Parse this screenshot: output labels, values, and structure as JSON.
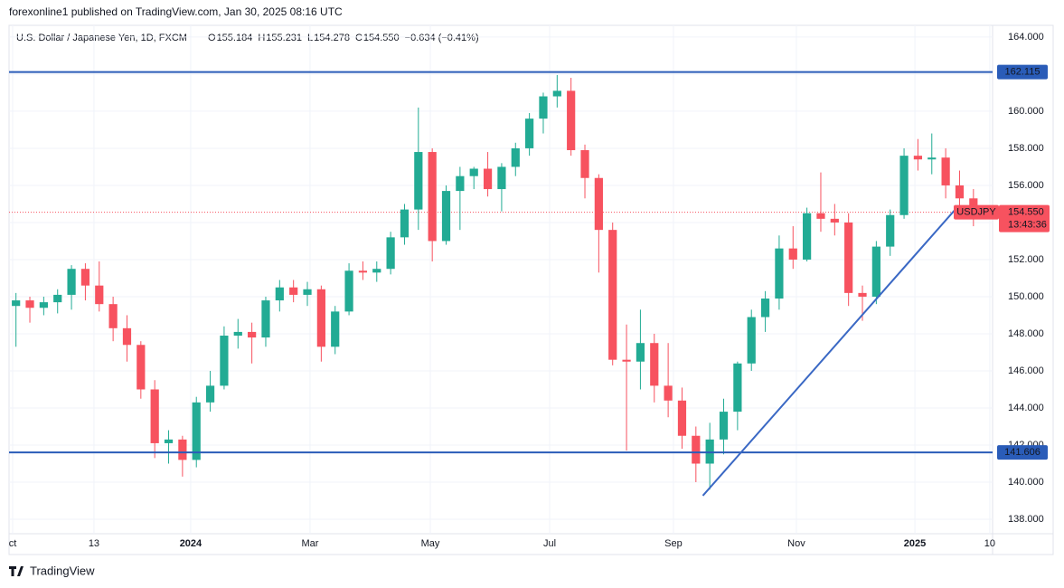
{
  "chart_data": {
    "type": "candlestick",
    "published": "forexonline1 published on TradingView.com, Jan 30, 2025 08:16 UTC",
    "title": "U.S. Dollar / Japanese Yen, 1D, FXCM",
    "ohlc_header": [
      {
        "label": "O",
        "value": "155.184"
      },
      {
        "label": "H",
        "value": "155.231"
      },
      {
        "label": "L",
        "value": "154.278"
      },
      {
        "label": "C",
        "value": "154.550"
      }
    ],
    "change": "−0.634 (−0.41%)",
    "symbol": "USDJPY",
    "countdown": "13:43:36",
    "brand": "TradingView",
    "up_color": "#22ab94",
    "down_color": "#f7525f",
    "x": [
      0,
      1,
      2,
      3,
      4,
      5,
      6,
      7,
      8,
      9,
      10,
      11,
      12,
      13,
      14,
      15,
      16,
      17,
      18,
      19,
      20,
      21,
      22,
      23,
      24,
      25,
      26,
      27,
      28,
      29,
      30,
      31,
      32,
      33,
      34,
      35,
      36,
      37,
      38,
      39,
      40,
      41,
      42,
      43,
      44,
      45,
      46,
      47,
      48,
      49,
      50,
      51,
      52,
      53,
      54,
      55,
      56,
      57,
      58,
      59,
      60,
      61,
      62,
      63,
      64,
      65,
      66,
      67,
      68,
      69
    ],
    "open": [
      149.5,
      149.8,
      149.4,
      149.7,
      150.1,
      151.5,
      150.6,
      149.6,
      148.3,
      147.4,
      145.0,
      142.1,
      142.3,
      141.2,
      144.3,
      145.2,
      147.9,
      148.1,
      147.8,
      149.8,
      150.5,
      150.1,
      150.4,
      147.3,
      149.2,
      151.4,
      151.3,
      151.5,
      153.2,
      154.7,
      157.8,
      153.0,
      155.7,
      156.5,
      156.9,
      155.8,
      157.0,
      158.0,
      159.6,
      160.8,
      161.1,
      157.9,
      156.4,
      153.6,
      146.6,
      146.5,
      147.5,
      145.2,
      144.4,
      142.5,
      141.0,
      142.3,
      143.8,
      146.4,
      148.9,
      149.9,
      152.6,
      152.0,
      154.5,
      154.2,
      154.0,
      150.2,
      150.0,
      152.7,
      154.4,
      157.6,
      157.4,
      157.5,
      156.0,
      155.3
    ],
    "high": [
      150.2,
      150.0,
      150.0,
      150.4,
      151.7,
      151.8,
      151.9,
      150.0,
      149.0,
      147.6,
      145.5,
      142.8,
      142.5,
      144.6,
      146.0,
      148.4,
      148.8,
      148.6,
      150.0,
      150.9,
      150.9,
      150.8,
      150.6,
      149.5,
      151.8,
      151.9,
      151.9,
      153.5,
      155.0,
      160.2,
      158.0,
      156.0,
      157.0,
      157.0,
      157.8,
      157.2,
      158.3,
      159.9,
      161.0,
      161.95,
      161.8,
      158.2,
      156.6,
      154.0,
      148.5,
      149.3,
      148.0,
      147.5,
      145.1,
      143.0,
      143.2,
      144.5,
      146.5,
      149.3,
      150.3,
      153.3,
      153.8,
      154.8,
      156.7,
      155.0,
      154.5,
      150.6,
      153.0,
      154.7,
      158.0,
      158.5,
      158.8,
      158.0,
      156.8,
      155.8
    ],
    "low": [
      147.3,
      148.6,
      149.0,
      149.1,
      149.3,
      149.8,
      149.2,
      147.6,
      146.5,
      144.5,
      141.3,
      141.0,
      140.3,
      140.8,
      143.8,
      145.0,
      147.2,
      146.4,
      147.3,
      149.2,
      149.7,
      149.5,
      146.5,
      146.9,
      149.0,
      150.9,
      150.8,
      151.2,
      152.8,
      153.6,
      151.9,
      152.8,
      153.6,
      155.8,
      155.4,
      154.6,
      156.5,
      157.6,
      158.8,
      160.2,
      157.6,
      155.3,
      151.3,
      146.3,
      141.7,
      145.0,
      144.3,
      143.5,
      141.8,
      140.0,
      139.6,
      141.5,
      142.8,
      146.0,
      148.1,
      149.3,
      151.5,
      151.9,
      153.5,
      153.3,
      149.5,
      148.7,
      149.6,
      152.2,
      154.2,
      156.8,
      156.6,
      155.3,
      154.8,
      153.8
    ],
    "close": [
      149.8,
      149.4,
      149.7,
      150.1,
      151.5,
      150.6,
      149.6,
      148.3,
      147.4,
      145.0,
      142.1,
      142.3,
      141.2,
      144.3,
      145.2,
      147.9,
      148.1,
      147.8,
      149.8,
      150.5,
      150.1,
      150.4,
      147.3,
      149.2,
      151.4,
      151.3,
      151.5,
      153.2,
      154.7,
      157.8,
      153.0,
      155.7,
      156.5,
      156.9,
      155.8,
      157.0,
      158.0,
      159.6,
      160.8,
      161.1,
      157.9,
      156.4,
      153.6,
      146.6,
      146.5,
      147.5,
      145.2,
      144.4,
      142.5,
      141.0,
      142.3,
      143.8,
      146.4,
      148.9,
      149.9,
      152.6,
      152.0,
      154.5,
      154.2,
      154.0,
      150.2,
      150.0,
      152.7,
      154.4,
      157.6,
      157.4,
      157.5,
      156.0,
      155.3,
      154.55
    ],
    "last_price": {
      "value": 154.55,
      "label": "154.550"
    },
    "hlines": [
      {
        "value": 162.115,
        "color": "#2a5cb8"
      },
      {
        "value": 141.606,
        "color": "#2a5cb8"
      }
    ],
    "trendline": {
      "x": [
        49.5,
        67.9
      ],
      "y": [
        139.27,
        154.88
      ],
      "color": "#3a68c4"
    },
    "xlim": [
      -0.5,
      70.38
    ],
    "ylim": [
      137.22,
      164.63
    ],
    "xticks": [
      {
        "value": -0.24,
        "label": "ct"
      },
      {
        "value": 5.62,
        "label": "13"
      },
      {
        "value": 12.59,
        "label": "2024"
      },
      {
        "value": 21.19,
        "label": "Mar"
      },
      {
        "value": 29.86,
        "label": "May"
      },
      {
        "value": 38.46,
        "label": "Jul"
      },
      {
        "value": 47.38,
        "label": "Sep"
      },
      {
        "value": 56.24,
        "label": "Nov"
      },
      {
        "value": 64.78,
        "label": "2025"
      },
      {
        "value": 70.18,
        "label": "10"
      }
    ],
    "yticks": [
      {
        "value": 138,
        "label": "138.000"
      },
      {
        "value": 140,
        "label": "140.000"
      },
      {
        "value": 142,
        "label": "142.000"
      },
      {
        "value": 144,
        "label": "144.000"
      },
      {
        "value": 146,
        "label": "146.000"
      },
      {
        "value": 148,
        "label": "148.000"
      },
      {
        "value": 150,
        "label": "150.000"
      },
      {
        "value": 152,
        "label": "152.000"
      },
      {
        "value": 154,
        "label": "154.000"
      },
      {
        "value": 156,
        "label": "156.000"
      },
      {
        "value": 158,
        "label": "158.000"
      },
      {
        "value": 160,
        "label": "160.000"
      },
      {
        "value": 162,
        "label": "162.000"
      },
      {
        "value": 164,
        "label": "164.000"
      }
    ],
    "grid": true
  }
}
